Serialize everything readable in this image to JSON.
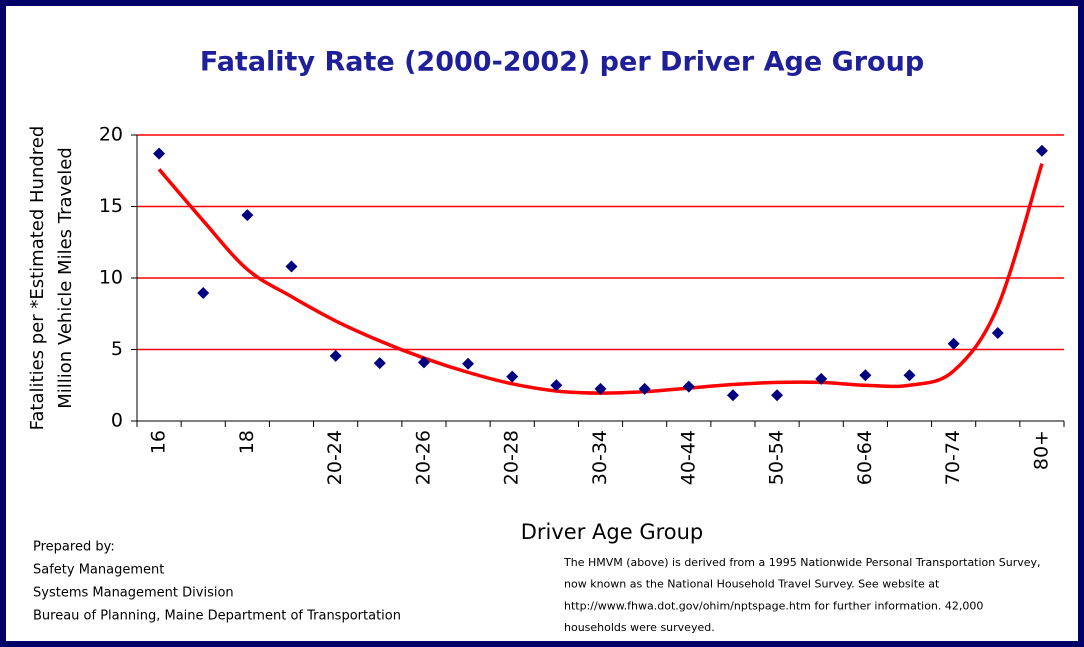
{
  "chart_data": {
    "type": "scatter",
    "title": "Fatality Rate (2000-2002) per Driver Age Group",
    "ylabel": [
      "Fatalities per *Estimated Hundred",
      "Million Vehicle Miles Traveled"
    ],
    "xlabel": "Driver Age Group",
    "categories": [
      "16",
      null,
      "18",
      null,
      "20-24",
      null,
      "20-26",
      null,
      "20-28",
      null,
      "30-34",
      null,
      "40-44",
      null,
      "50-54",
      null,
      "60-64",
      null,
      "70-74",
      null,
      "80+"
    ],
    "series": [
      {
        "color": "#000080",
        "values": [
          18.7,
          8.95,
          14.4,
          10.8,
          4.55,
          4.05,
          4.1,
          4.0,
          3.1,
          2.5,
          2.25,
          2.25,
          2.4,
          1.8,
          1.8,
          2.95,
          3.2,
          3.2,
          5.4,
          6.15,
          18.9
        ]
      }
    ],
    "trendline": {
      "color": "#ff0000",
      "values": [
        17.6,
        14.0,
        10.6,
        8.7,
        7.0,
        5.6,
        4.4,
        3.4,
        2.6,
        2.1,
        1.95,
        2.05,
        2.3,
        2.55,
        2.7,
        2.7,
        2.5,
        2.5,
        3.5,
        8.0,
        18.0
      ]
    },
    "ylim": [
      0,
      20
    ],
    "yticks": [
      0,
      5,
      10,
      15,
      20
    ],
    "grid": true,
    "grid_color": "#ff0000",
    "footer_left": [
      "Prepared by:",
      "Safety Management",
      "Systems Management Division",
      "Bureau of Planning, Maine Department of Transportation"
    ],
    "footer_note": [
      "The HMVM (above) is derived from a 1995 Nationwide Personal Transportation Survey,",
      "now known as the National Household Travel Survey. See website at",
      "http://www.fhwa.dot.gov/ohim/nptspage.htm for further information. 42,000",
      "households were surveyed."
    ]
  }
}
